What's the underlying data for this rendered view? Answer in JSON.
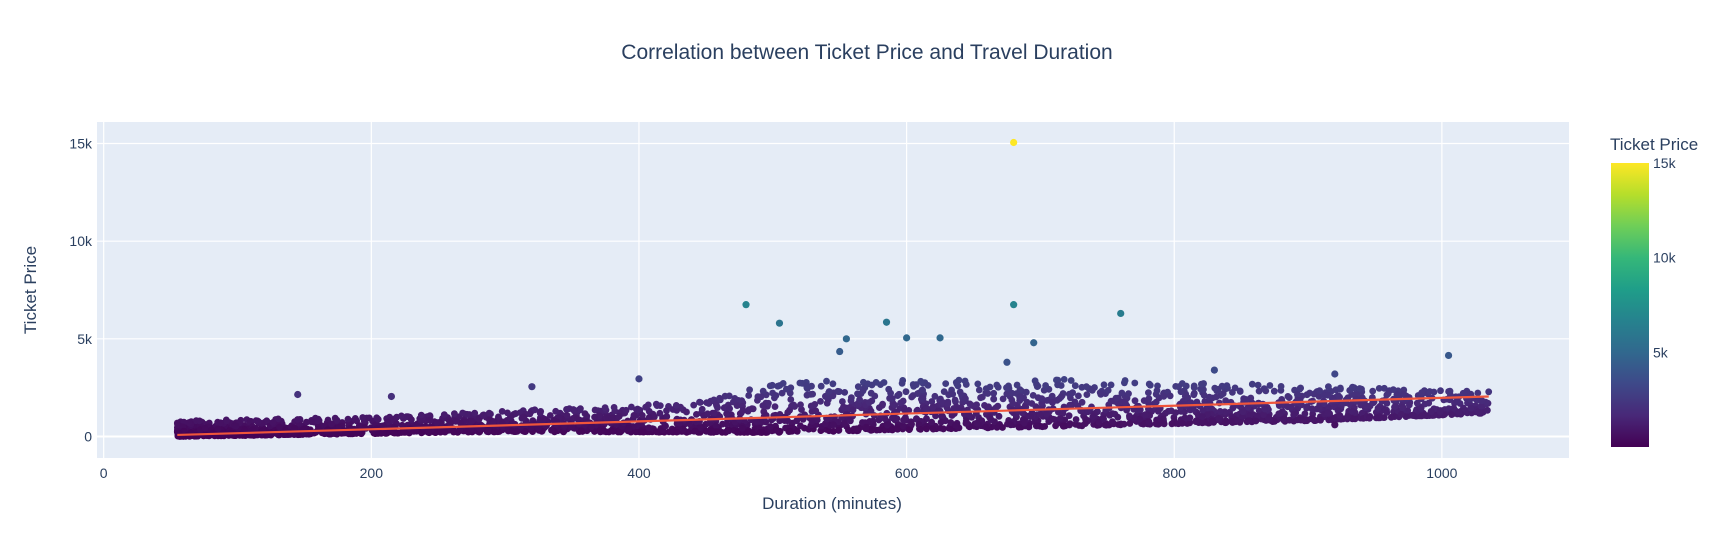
{
  "chart_data": {
    "type": "scatter",
    "title": "Correlation between Ticket Price and Travel Duration",
    "xlabel": "Duration (minutes)",
    "ylabel": "Ticket Price",
    "xlim": [
      -5,
      1095
    ],
    "ylim": [
      -1100,
      16100
    ],
    "x_ticks": [
      0,
      200,
      400,
      600,
      800,
      1000
    ],
    "x_tick_labels": [
      "0",
      "200",
      "400",
      "600",
      "800",
      "1000"
    ],
    "y_ticks": [
      0,
      5000,
      10000,
      15000
    ],
    "y_tick_labels": [
      "0",
      "5k",
      "10k",
      "15k"
    ],
    "grid": true,
    "colorscale": "Viridis",
    "colorbar": {
      "title": "Ticket Price",
      "range": [
        0,
        15000
      ],
      "ticks": [
        5000,
        10000,
        15000
      ],
      "tick_labels": [
        "5k",
        "10k",
        "15k"
      ]
    },
    "trendline": {
      "x": [
        55,
        1035
      ],
      "y": [
        80,
        2050
      ],
      "color": "#ef553b"
    },
    "dense_band": {
      "x_range": [
        55,
        1035
      ],
      "lower": [
        [
          55,
          0
        ],
        [
          300,
          250
        ],
        [
          500,
          200
        ],
        [
          700,
          500
        ],
        [
          900,
          800
        ],
        [
          1035,
          1200
        ]
      ],
      "upper": [
        [
          55,
          800
        ],
        [
          200,
          1000
        ],
        [
          300,
          1300
        ],
        [
          450,
          1800
        ],
        [
          500,
          2800
        ],
        [
          700,
          3000
        ],
        [
          900,
          2600
        ],
        [
          1035,
          2300
        ]
      ]
    },
    "outliers": [
      {
        "x": 680,
        "y": 15050
      },
      {
        "x": 480,
        "y": 6750
      },
      {
        "x": 680,
        "y": 6750
      },
      {
        "x": 760,
        "y": 6300
      },
      {
        "x": 505,
        "y": 5800
      },
      {
        "x": 585,
        "y": 5850
      },
      {
        "x": 555,
        "y": 5000
      },
      {
        "x": 600,
        "y": 5050
      },
      {
        "x": 625,
        "y": 5050
      },
      {
        "x": 695,
        "y": 4800
      },
      {
        "x": 1005,
        "y": 4150
      },
      {
        "x": 550,
        "y": 4350
      },
      {
        "x": 675,
        "y": 3800
      },
      {
        "x": 830,
        "y": 3400
      },
      {
        "x": 400,
        "y": 2950
      },
      {
        "x": 320,
        "y": 2550
      },
      {
        "x": 145,
        "y": 2150
      },
      {
        "x": 215,
        "y": 2050
      },
      {
        "x": 920,
        "y": 3200
      },
      {
        "x": 920,
        "y": 600
      }
    ],
    "marker_colors_note": "color encodes ticket price on Viridis scale"
  }
}
